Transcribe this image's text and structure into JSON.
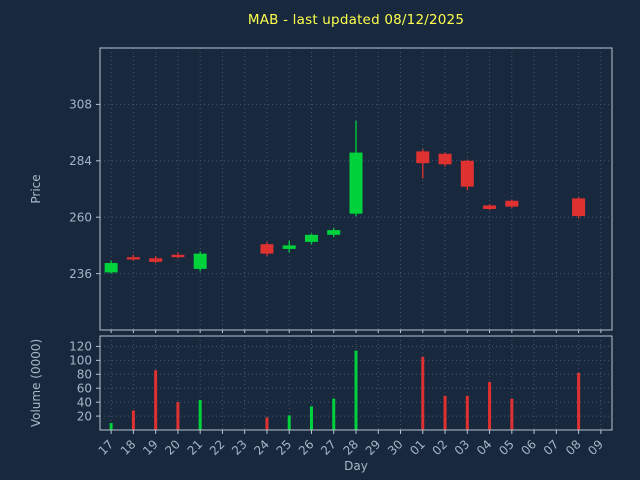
{
  "colors": {
    "background": "#18293e",
    "up": "#00d23c",
    "down": "#e03131",
    "grid": "#47586d",
    "frame": "#b8c4d0",
    "text": "#a3b5c6",
    "title": "#ffff4d"
  },
  "chart_data": {
    "type": "candlestick",
    "title": "MAB - last updated 08/12/2025",
    "xlabel": "Day",
    "ylabel_price": "Price",
    "ylabel_volume": "Volume (0000)",
    "grid": "dotted",
    "legend": "none",
    "days": [
      "17",
      "18",
      "19",
      "20",
      "21",
      "22",
      "23",
      "24",
      "25",
      "26",
      "27",
      "28",
      "29",
      "30",
      "01",
      "02",
      "03",
      "04",
      "05",
      "06",
      "07",
      "08",
      "09"
    ],
    "candles": [
      {
        "open": 236.5,
        "high": 241.5,
        "low": 236.0,
        "close": 240.5
      },
      {
        "open": 243.0,
        "high": 244.0,
        "low": 241.5,
        "close": 242.0
      },
      {
        "open": 242.5,
        "high": 243.5,
        "low": 240.5,
        "close": 241.0
      },
      {
        "open": 244.0,
        "high": 245.0,
        "low": 242.5,
        "close": 243.0
      },
      {
        "open": 238.0,
        "high": 245.5,
        "low": 237.0,
        "close": 244.5
      },
      null,
      null,
      {
        "open": 248.5,
        "high": 249.5,
        "low": 243.5,
        "close": 244.5
      },
      {
        "open": 246.5,
        "high": 250.0,
        "low": 245.0,
        "close": 248.0
      },
      {
        "open": 249.5,
        "high": 253.0,
        "low": 248.5,
        "close": 252.5
      },
      {
        "open": 252.5,
        "high": 255.5,
        "low": 251.5,
        "close": 254.5
      },
      {
        "open": 261.5,
        "high": 301.0,
        "low": 260.5,
        "close": 287.5
      },
      null,
      null,
      {
        "open": 288.0,
        "high": 289.0,
        "low": 276.5,
        "close": 283.0
      },
      {
        "open": 287.0,
        "high": 287.5,
        "low": 281.5,
        "close": 282.5
      },
      {
        "open": 284.0,
        "high": 284.5,
        "low": 271.5,
        "close": 273.0
      },
      {
        "open": 265.0,
        "high": 265.5,
        "low": 263.0,
        "close": 263.5
      },
      {
        "open": 267.0,
        "high": 267.5,
        "low": 264.0,
        "close": 264.5
      },
      null,
      null,
      {
        "open": 268.0,
        "high": 268.5,
        "low": 259.5,
        "close": 260.5
      },
      null
    ],
    "volumes": [
      10,
      28,
      86,
      40,
      43,
      0,
      0,
      18,
      21,
      34,
      45,
      114,
      0,
      0,
      105,
      49,
      49,
      69,
      45,
      0,
      0,
      82,
      0
    ],
    "price_ticks": [
      236,
      260,
      284,
      308
    ],
    "price_range": [
      212,
      332
    ],
    "volume_ticks": [
      20,
      40,
      60,
      80,
      100,
      120
    ],
    "volume_range": [
      0,
      135
    ]
  }
}
